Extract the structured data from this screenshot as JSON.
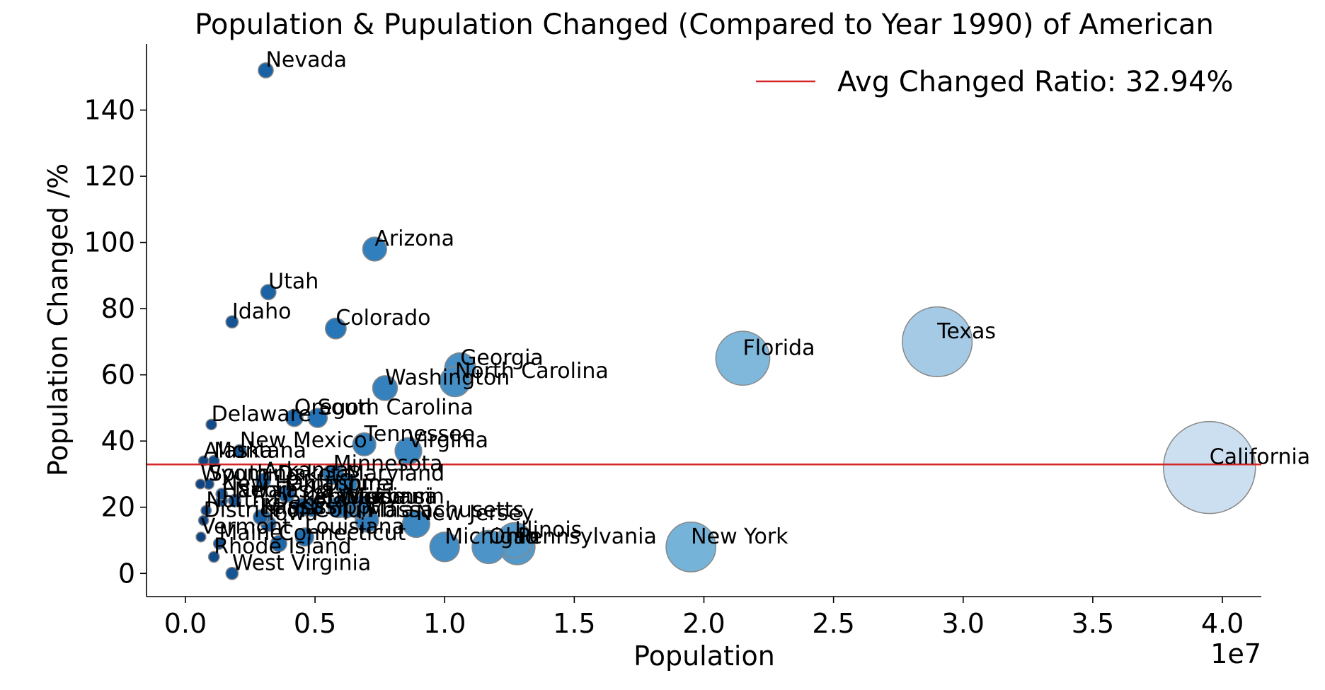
{
  "chart_data": {
    "type": "scatter",
    "title": "Population & Pupulation Changed (Compared to Year 1990) of American",
    "xlabel": "Population",
    "ylabel": "Population Changed /%",
    "x_multiplier_label": "1e7",
    "x_scale": 10000000,
    "xlim": [
      -0.15,
      4.15
    ],
    "ylim": [
      -7,
      160
    ],
    "x_ticks": [
      0.0,
      0.5,
      1.0,
      1.5,
      2.0,
      2.5,
      3.0,
      3.5,
      4.0
    ],
    "x_tick_labels": [
      "0.0",
      "0.5",
      "1.0",
      "1.5",
      "2.0",
      "2.5",
      "3.0",
      "3.5",
      "4.0"
    ],
    "y_ticks": [
      0,
      20,
      40,
      60,
      80,
      100,
      120,
      140
    ],
    "y_tick_labels": [
      "0",
      "20",
      "40",
      "60",
      "80",
      "100",
      "120",
      "140"
    ],
    "grid": false,
    "legend_position": "top-right",
    "reference_line": {
      "label": "Avg Changed Ratio: 32.94%",
      "y": 32.94,
      "color": "#d62728"
    },
    "marker_size_encodes": "population",
    "marker_color_encodes": "population (Blues colormap, darker = smaller)",
    "points": [
      {
        "name": "California",
        "x": 39500000,
        "y": 32
      },
      {
        "name": "Texas",
        "x": 29000000,
        "y": 70
      },
      {
        "name": "Florida",
        "x": 21500000,
        "y": 65
      },
      {
        "name": "New York",
        "x": 19500000,
        "y": 8
      },
      {
        "name": "Pennsylvania",
        "x": 12800000,
        "y": 8
      },
      {
        "name": "Illinois",
        "x": 12700000,
        "y": 10
      },
      {
        "name": "Ohio",
        "x": 11700000,
        "y": 8
      },
      {
        "name": "Georgia",
        "x": 10600000,
        "y": 62
      },
      {
        "name": "North Carolina",
        "x": 10400000,
        "y": 58
      },
      {
        "name": "Michigan",
        "x": 10000000,
        "y": 8
      },
      {
        "name": "New Jersey",
        "x": 8900000,
        "y": 15
      },
      {
        "name": "Virginia",
        "x": 8600000,
        "y": 37
      },
      {
        "name": "Washington",
        "x": 7700000,
        "y": 56
      },
      {
        "name": "Arizona",
        "x": 7300000,
        "y": 98
      },
      {
        "name": "Massachusetts",
        "x": 7000000,
        "y": 16
      },
      {
        "name": "Tennessee",
        "x": 6900000,
        "y": 39
      },
      {
        "name": "Indiana",
        "x": 6700000,
        "y": 20
      },
      {
        "name": "Maryland",
        "x": 6200000,
        "y": 27
      },
      {
        "name": "Missouri",
        "x": 6200000,
        "y": 20
      },
      {
        "name": "Wisconsin",
        "x": 5900000,
        "y": 20
      },
      {
        "name": "Colorado",
        "x": 5800000,
        "y": 74
      },
      {
        "name": "Minnesota",
        "x": 5700000,
        "y": 30
      },
      {
        "name": "South Carolina",
        "x": 5100000,
        "y": 47
      },
      {
        "name": "Alabama",
        "x": 4900000,
        "y": 20
      },
      {
        "name": "Louisiana",
        "x": 4600000,
        "y": 11
      },
      {
        "name": "Kentucky",
        "x": 4500000,
        "y": 20
      },
      {
        "name": "Oregon",
        "x": 4200000,
        "y": 47
      },
      {
        "name": "Oklahoma",
        "x": 3900000,
        "y": 24
      },
      {
        "name": "Connecticut",
        "x": 3600000,
        "y": 9
      },
      {
        "name": "Utah",
        "x": 3200000,
        "y": 85
      },
      {
        "name": "Iowa",
        "x": 3200000,
        "y": 15
      },
      {
        "name": "Nevada",
        "x": 3100000,
        "y": 152
      },
      {
        "name": "Arkansas",
        "x": 3000000,
        "y": 28
      },
      {
        "name": "Mississippi",
        "x": 3000000,
        "y": 17
      },
      {
        "name": "Kansas",
        "x": 2900000,
        "y": 17
      },
      {
        "name": "New Mexico",
        "x": 2100000,
        "y": 37
      },
      {
        "name": "Nebraska",
        "x": 1900000,
        "y": 22
      },
      {
        "name": "Idaho",
        "x": 1800000,
        "y": 76
      },
      {
        "name": "West Virginia",
        "x": 1800000,
        "y": 0
      },
      {
        "name": "Hawaii",
        "x": 1400000,
        "y": 22
      },
      {
        "name": "New Hampshire",
        "x": 1400000,
        "y": 24
      },
      {
        "name": "Maine",
        "x": 1300000,
        "y": 9
      },
      {
        "name": "Rhode Island",
        "x": 1100000,
        "y": 5
      },
      {
        "name": "Montana",
        "x": 1100000,
        "y": 34
      },
      {
        "name": "Delaware",
        "x": 1000000,
        "y": 45
      },
      {
        "name": "South Dakota",
        "x": 900000,
        "y": 27
      },
      {
        "name": "North Dakota",
        "x": 800000,
        "y": 19
      },
      {
        "name": "Alaska",
        "x": 700000,
        "y": 34
      },
      {
        "name": "District of Columbia",
        "x": 700000,
        "y": 16
      },
      {
        "name": "Vermont",
        "x": 600000,
        "y": 11
      },
      {
        "name": "Wyoming",
        "x": 580000,
        "y": 27
      }
    ]
  }
}
